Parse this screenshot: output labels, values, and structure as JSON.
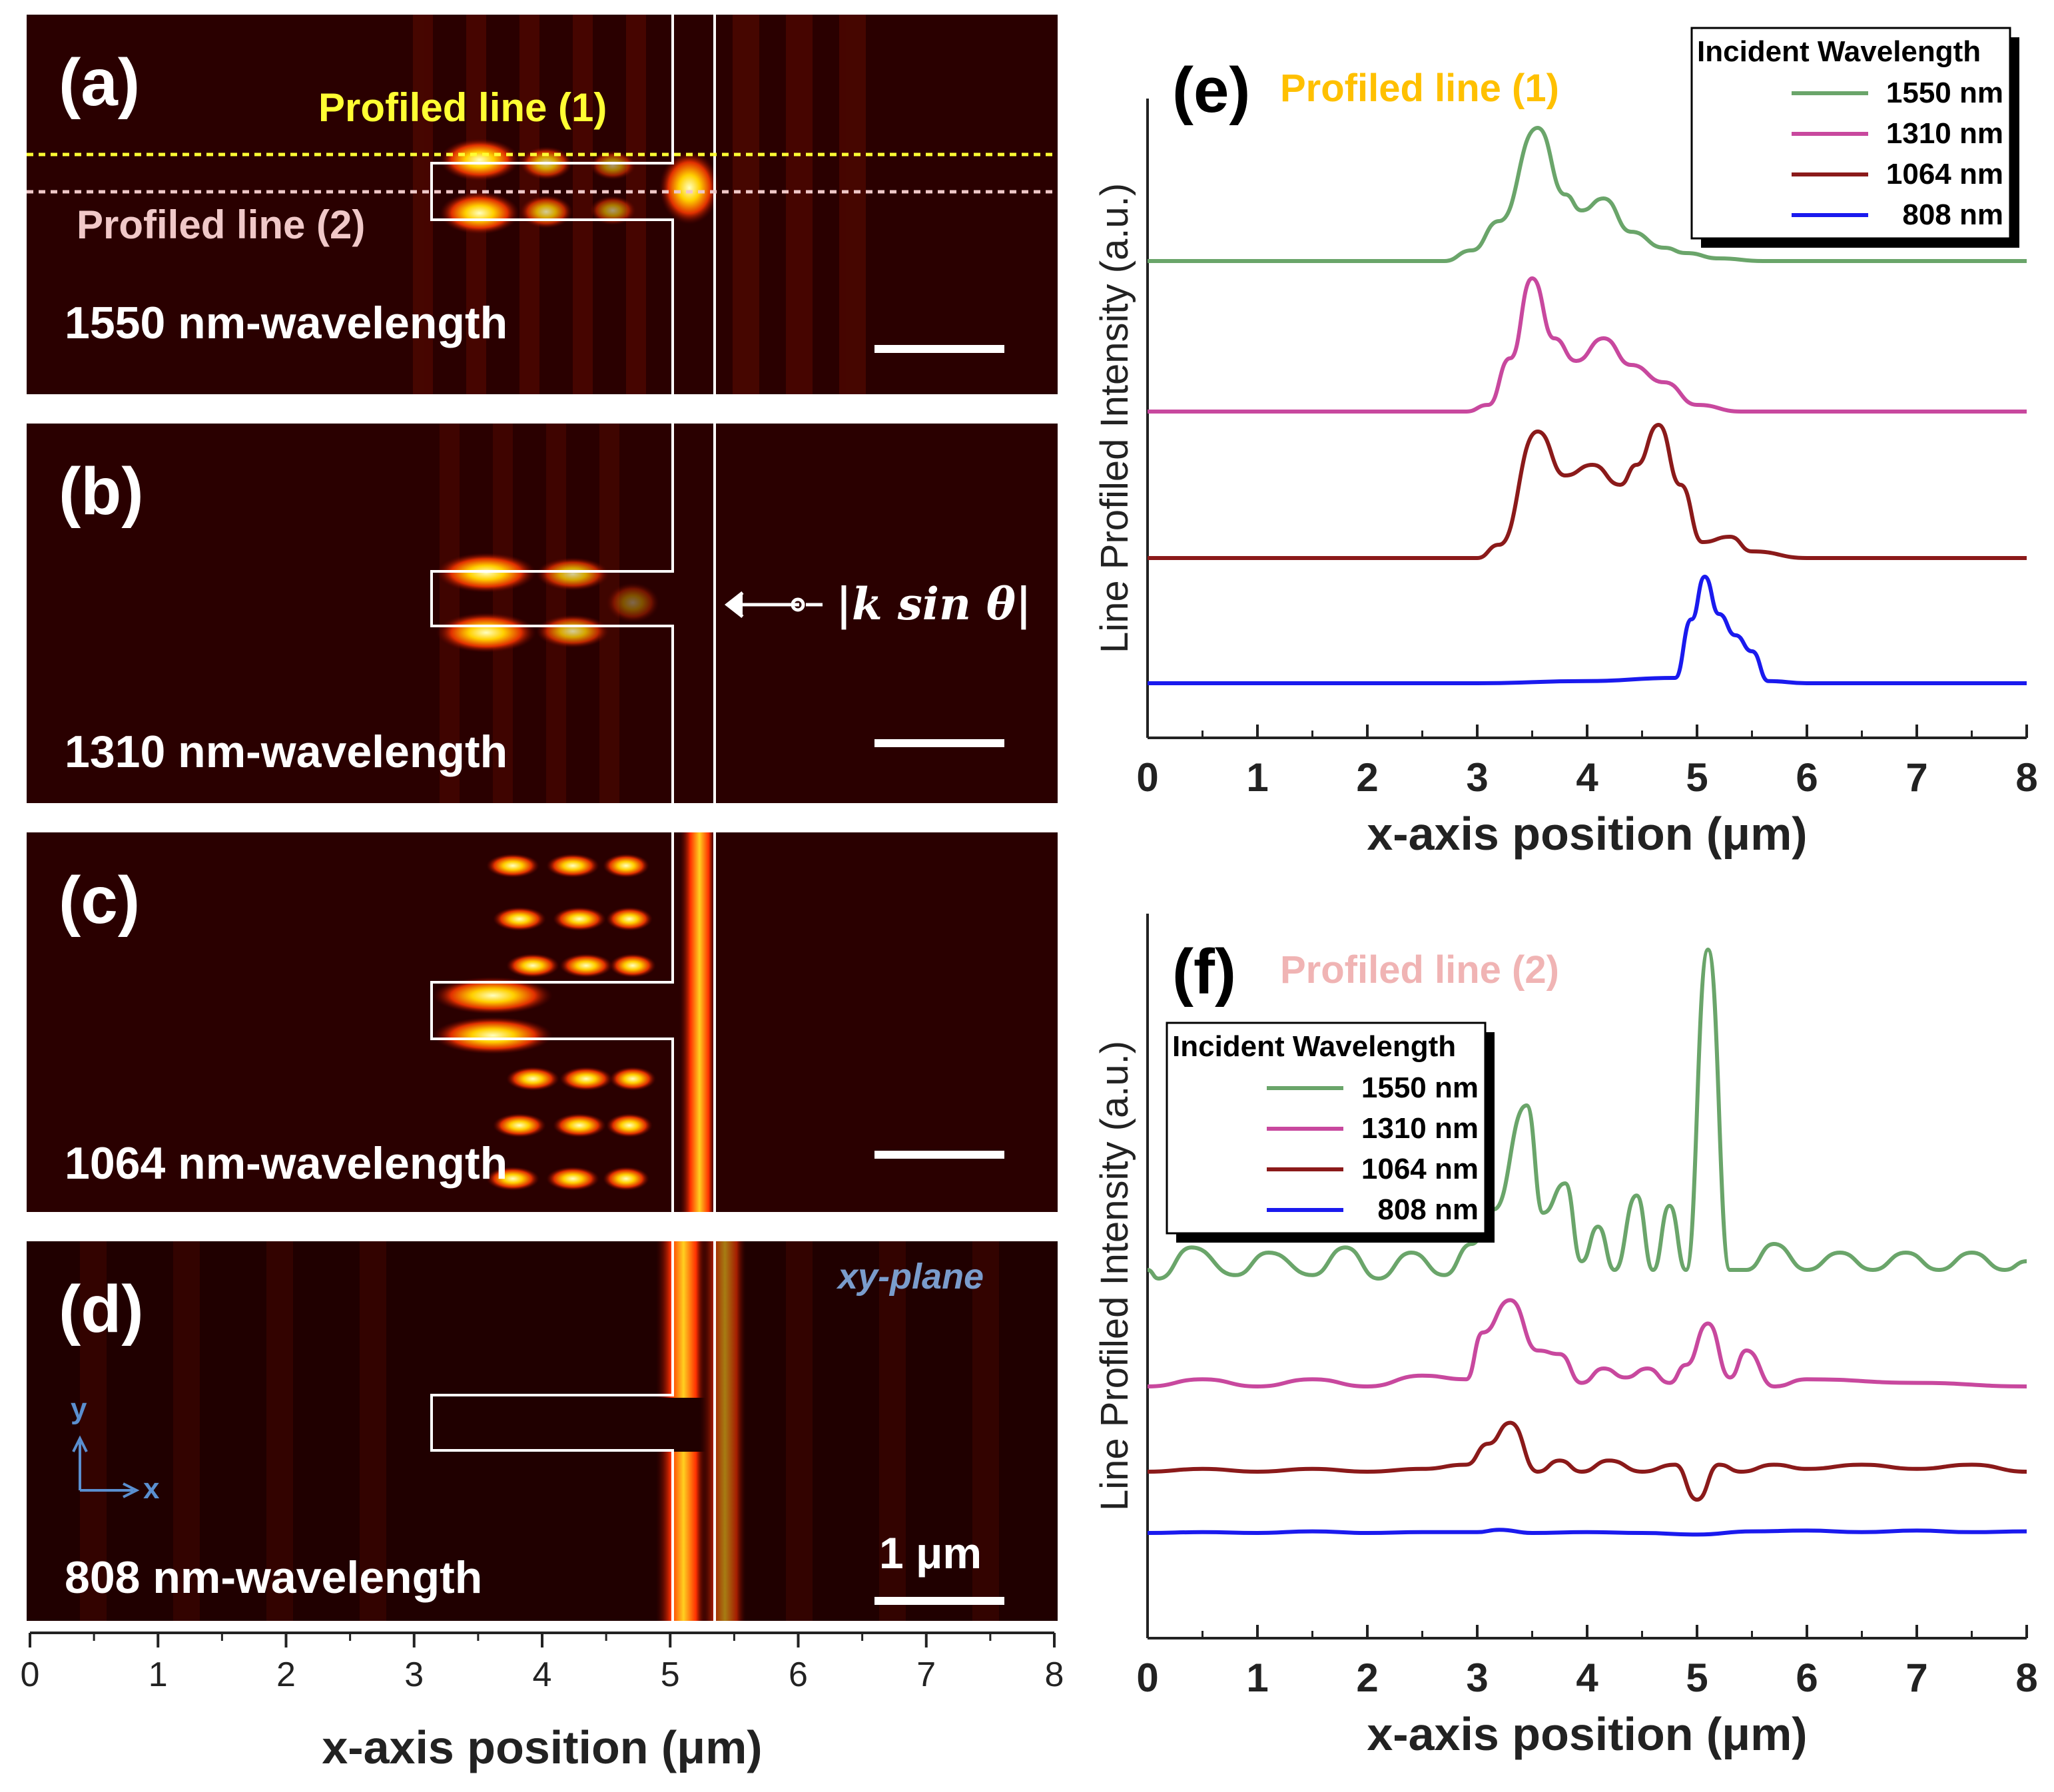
{
  "left_panels": {
    "panels": [
      {
        "label": "(a)",
        "wavelength_text": "1550 nm-wavelength"
      },
      {
        "label": "(b)",
        "wavelength_text": "1310 nm-wavelength"
      },
      {
        "label": "(c)",
        "wavelength_text": "1064 nm-wavelength"
      },
      {
        "label": "(d)",
        "wavelength_text": "808 nm-wavelength"
      }
    ],
    "profiled_line_1": "Profiled line (1)",
    "profiled_line_2": "Profiled line (2)",
    "profiled_line_1_color": "#ffff33",
    "profiled_line_2_color": "#f0c8c8",
    "k_annotation": "|k sin θ|",
    "plane_label": "xy-plane",
    "axis_y": "y",
    "axis_x": "x",
    "scale_bar": "1 μm",
    "xlabel": "x-axis position (μm)",
    "x_ticks": [
      "0",
      "1",
      "2",
      "3",
      "4",
      "5",
      "6",
      "7",
      "8"
    ]
  },
  "chart_data": [
    {
      "type": "line",
      "panel": "(e)",
      "title": "Profiled line (1)",
      "title_color": "#ffc000",
      "xlabel": "x-axis position (μm)",
      "ylabel": "Line Profiled Intensity (a.u.)",
      "xlim": [
        0,
        8
      ],
      "x_ticks": [
        "0",
        "1",
        "2",
        "3",
        "4",
        "5",
        "6",
        "7",
        "8"
      ],
      "legend_title": "Incident Wavelength",
      "legend_position": "top-right",
      "series": [
        {
          "name": "1550 nm",
          "color": "#6aa56a",
          "x": [
            0,
            1,
            2,
            2.7,
            2.95,
            3.2,
            3.55,
            3.8,
            3.95,
            4.15,
            4.4,
            4.7,
            4.9,
            5.2,
            5.6,
            6,
            7,
            8
          ],
          "y": [
            0,
            0,
            0,
            0,
            0.08,
            0.3,
            1.0,
            0.5,
            0.38,
            0.47,
            0.22,
            0.1,
            0.06,
            0.02,
            0,
            0,
            0,
            0
          ]
        },
        {
          "name": "1310 nm",
          "color": "#c8489e",
          "x": [
            0,
            1,
            2,
            2.9,
            3.1,
            3.3,
            3.5,
            3.7,
            3.9,
            4.15,
            4.4,
            4.7,
            5.0,
            5.4,
            6,
            7,
            8
          ],
          "y": [
            0,
            0,
            0,
            0,
            0.05,
            0.4,
            1.0,
            0.55,
            0.38,
            0.55,
            0.35,
            0.22,
            0.05,
            0,
            0,
            0,
            0
          ]
        },
        {
          "name": "1064 nm",
          "color": "#8b1a1a",
          "x": [
            0,
            1,
            2,
            3,
            3.2,
            3.55,
            3.8,
            4.05,
            4.3,
            4.45,
            4.65,
            4.85,
            5.05,
            5.3,
            5.5,
            6,
            7,
            8
          ],
          "y": [
            0,
            0,
            0,
            0,
            0.1,
            0.95,
            0.62,
            0.7,
            0.55,
            0.7,
            1.0,
            0.55,
            0.12,
            0.16,
            0.05,
            0,
            0,
            0
          ]
        },
        {
          "name": "808 nm",
          "color": "#1a1aee",
          "x": [
            0,
            1,
            2,
            3,
            4,
            4.8,
            4.95,
            5.07,
            5.2,
            5.35,
            5.5,
            5.65,
            6,
            7,
            8
          ],
          "y": [
            0,
            0,
            0,
            0,
            0.02,
            0.05,
            0.6,
            1.0,
            0.65,
            0.45,
            0.3,
            0.02,
            0,
            0,
            0
          ]
        }
      ]
    },
    {
      "type": "line",
      "panel": "(f)",
      "title": "Profiled line (2)",
      "title_color": "#f0b4b4",
      "xlabel": "x-axis position (μm)",
      "ylabel": "Line Profiled Intensity (a.u.)",
      "xlim": [
        0,
        8
      ],
      "x_ticks": [
        "0",
        "1",
        "2",
        "3",
        "4",
        "5",
        "6",
        "7",
        "8"
      ],
      "legend_title": "Incident Wavelength",
      "legend_position": "top-left",
      "series": [
        {
          "name": "1550 nm",
          "color": "#6aa56a",
          "x": [
            0,
            0.1,
            0.4,
            0.8,
            1.1,
            1.5,
            1.8,
            2.1,
            2.4,
            2.7,
            2.95,
            3.15,
            3.45,
            3.6,
            3.8,
            3.95,
            4.1,
            4.25,
            4.45,
            4.6,
            4.75,
            4.9,
            5.1,
            5.3,
            5.45,
            5.7,
            6,
            6.3,
            6.6,
            6.9,
            7.2,
            7.5,
            7.8,
            8
          ],
          "y": [
            0.05,
            0,
            0.18,
            0.02,
            0.15,
            0.02,
            0.18,
            0.0,
            0.15,
            0.02,
            0.2,
            0.4,
            1.0,
            0.38,
            0.55,
            0.1,
            0.3,
            0.05,
            0.48,
            0.05,
            0.42,
            0.05,
            1.9,
            0.05,
            0.05,
            0.2,
            0.05,
            0.15,
            0.05,
            0.15,
            0.05,
            0.15,
            0.05,
            0.1
          ]
        },
        {
          "name": "1310 nm",
          "color": "#c8489e",
          "x": [
            0,
            0.5,
            1,
            1.5,
            2,
            2.5,
            2.9,
            3.05,
            3.3,
            3.55,
            3.75,
            3.95,
            4.15,
            4.35,
            4.55,
            4.75,
            4.9,
            5.1,
            5.3,
            5.45,
            5.7,
            6,
            7,
            8
          ],
          "y": [
            0,
            0.04,
            0.0,
            0.04,
            0.0,
            0.06,
            0.04,
            0.3,
            0.48,
            0.2,
            0.18,
            0.02,
            0.1,
            0.05,
            0.1,
            0.02,
            0.12,
            0.35,
            0.05,
            0.2,
            0.0,
            0.04,
            0.02,
            0.0
          ]
        },
        {
          "name": "1064 nm",
          "color": "#8b1a1a",
          "x": [
            0,
            0.5,
            1,
            1.5,
            2,
            2.5,
            2.9,
            3.1,
            3.3,
            3.55,
            3.75,
            3.95,
            4.2,
            4.5,
            4.8,
            5.0,
            5.2,
            5.4,
            5.7,
            6,
            6.5,
            7,
            7.5,
            8
          ],
          "y": [
            0,
            0.02,
            0,
            0.02,
            0,
            0.02,
            0.05,
            0.2,
            0.35,
            0.0,
            0.08,
            0.0,
            0.08,
            0.0,
            0.05,
            -0.2,
            0.05,
            0.0,
            0.05,
            0.02,
            0.05,
            0.02,
            0.05,
            0.0
          ]
        },
        {
          "name": "808 nm",
          "color": "#1a1aee",
          "x": [
            0,
            0.5,
            1,
            1.5,
            2,
            2.5,
            3,
            3.2,
            3.5,
            4,
            4.5,
            5,
            5.5,
            6,
            6.5,
            7,
            7.5,
            8
          ],
          "y": [
            0,
            0.01,
            0,
            0.02,
            0,
            0.01,
            0.01,
            0.04,
            0.0,
            0.01,
            0.0,
            -0.02,
            0.02,
            0.03,
            0.01,
            0.03,
            0.01,
            0.02
          ]
        }
      ]
    }
  ]
}
